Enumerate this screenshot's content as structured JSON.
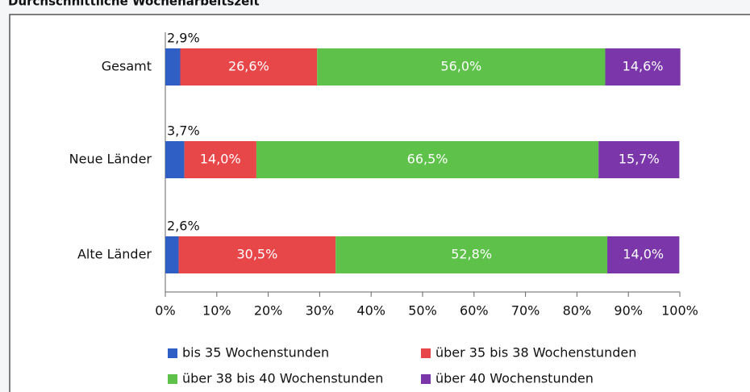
{
  "chart_data": {
    "type": "stacked-barh",
    "title": "Durchschnittliche Wochenarbeitszeit",
    "categories": [
      "Gesamt",
      "Neue Länder",
      "Alte Länder"
    ],
    "series": [
      {
        "name": "bis 35 Wochenstunden",
        "color": "#2f5ec4",
        "values": [
          2.9,
          3.7,
          2.6
        ],
        "value_labels": [
          "2,9%",
          "3,7%",
          "2,6%"
        ]
      },
      {
        "name": "über 35 bis 38 Wochenstunden",
        "color": "#e8474a",
        "values": [
          26.6,
          14.0,
          30.5
        ],
        "value_labels": [
          "26,6%",
          "14,0%",
          "30,5%"
        ]
      },
      {
        "name": "über 38 bis 40 Wochenstunden",
        "color": "#5ec24a",
        "values": [
          56.0,
          66.5,
          52.8
        ],
        "value_labels": [
          "56,0%",
          "66,5%",
          "52,8%"
        ]
      },
      {
        "name": "über 40 Wochenstunden",
        "color": "#7b36a9",
        "values": [
          14.6,
          15.7,
          14.0
        ],
        "value_labels": [
          "14,6%",
          "15,7%",
          "14,0%"
        ]
      }
    ],
    "xlim": [
      0,
      100
    ],
    "xticks": [
      {
        "value": 0,
        "label": "0%"
      },
      {
        "value": 10,
        "label": "10%"
      },
      {
        "value": 20,
        "label": "20%"
      },
      {
        "value": 30,
        "label": "30%"
      },
      {
        "value": 40,
        "label": "40%"
      },
      {
        "value": 50,
        "label": "50%"
      },
      {
        "value": 60,
        "label": "60%"
      },
      {
        "value": 70,
        "label": "70%"
      },
      {
        "value": 80,
        "label": "80%"
      },
      {
        "value": 90,
        "label": "90%"
      },
      {
        "value": 100,
        "label": "100%"
      }
    ],
    "grid": false
  }
}
